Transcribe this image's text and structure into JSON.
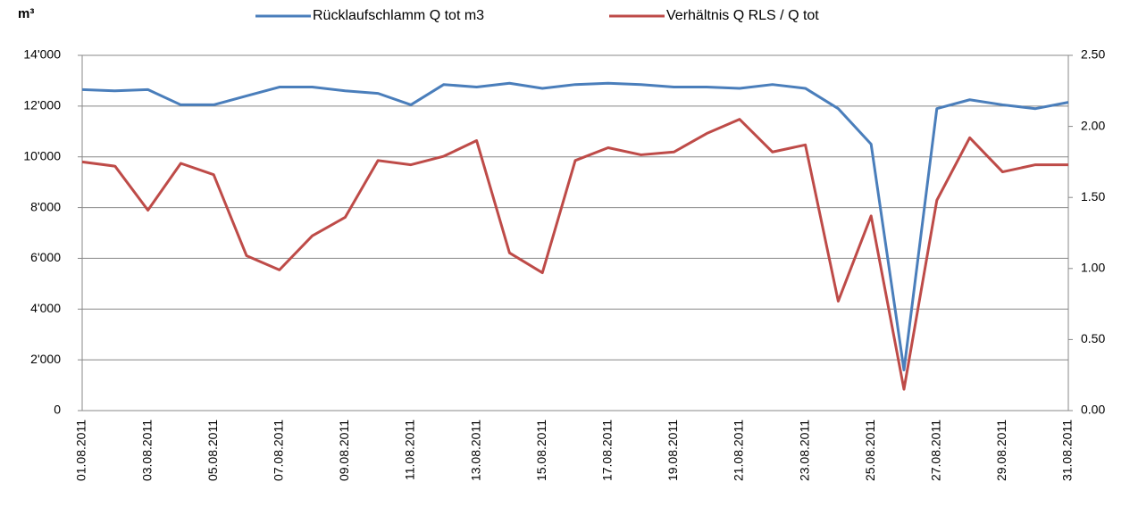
{
  "chart_data": {
    "type": "line",
    "y_axis_label": "m³",
    "categories": [
      "01.08.2011",
      null,
      "03.08.2011",
      null,
      "05.08.2011",
      null,
      "07.08.2011",
      null,
      "09.08.2011",
      null,
      "11.08.2011",
      null,
      "13.08.2011",
      null,
      "15.08.2011",
      null,
      "17.08.2011",
      null,
      "19.08.2011",
      null,
      "21.08.2011",
      null,
      "23.08.2011",
      null,
      "25.08.2011",
      null,
      "27.08.2011",
      null,
      "29.08.2011",
      null,
      "31.08.2011"
    ],
    "series": [
      {
        "name": "Rücklaufschlamm Q tot m3",
        "color": "#4a7ebb",
        "values": [
          12650,
          12600,
          12650,
          12050,
          12050,
          12400,
          12750,
          12750,
          12600,
          12500,
          12050,
          12850,
          12750,
          12900,
          12700,
          12850,
          12900,
          12850,
          12750,
          12750,
          12700,
          12850,
          12700,
          11900,
          10500,
          1600,
          11900,
          12250,
          12050,
          11900,
          12150
        ]
      },
      {
        "name": "Verhältnis Q RLS / Q tot",
        "color": "#be4b48",
        "axis": "y2",
        "values": [
          1.75,
          1.72,
          1.41,
          1.74,
          1.66,
          1.09,
          0.99,
          1.23,
          1.36,
          1.76,
          1.73,
          1.79,
          1.9,
          1.11,
          0.97,
          1.76,
          1.85,
          1.8,
          1.82,
          1.95,
          2.05,
          1.82,
          1.87,
          0.77,
          1.37,
          0.15,
          1.48,
          1.92,
          1.68,
          1.73,
          1.73
        ]
      }
    ],
    "ylim": [
      0,
      14000
    ],
    "yticks": [
      0,
      {
        "value": 2000,
        "label": "2'000"
      },
      {
        "value": 4000,
        "label": "4'000"
      },
      {
        "value": 6000,
        "label": "6'000"
      },
      {
        "value": 8000,
        "label": "8'000"
      },
      {
        "value": 10000,
        "label": "10'000"
      },
      {
        "value": 12000,
        "label": "12'000"
      },
      {
        "value": 14000,
        "label": "14'000"
      }
    ],
    "y2lim": [
      0,
      2.5
    ],
    "y2ticks": [
      {
        "value": 0,
        "label": "0.00"
      },
      {
        "value": 0.5,
        "label": "0.50"
      },
      {
        "value": 1,
        "label": "1.00"
      },
      {
        "value": 1.5,
        "label": "1.50"
      },
      {
        "value": 2,
        "label": "2.00"
      },
      {
        "value": 2.5,
        "label": "2.50"
      }
    ],
    "grid": true,
    "legend": "top"
  }
}
